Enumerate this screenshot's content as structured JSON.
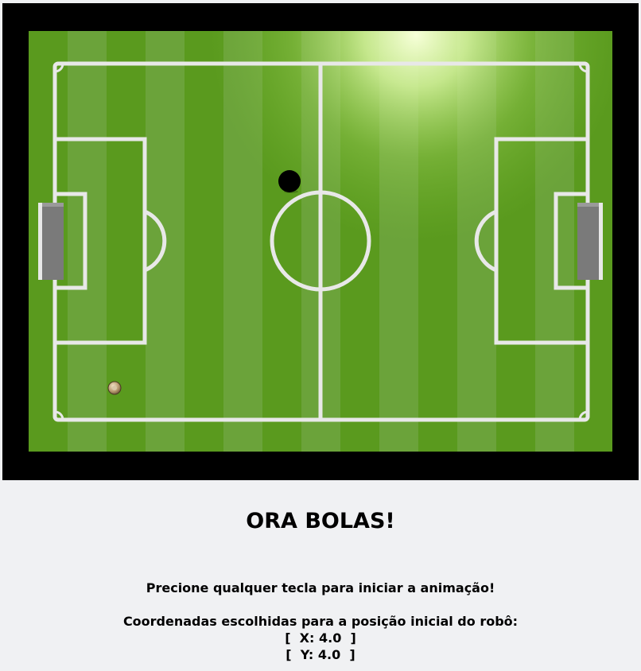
{
  "game": {
    "title": "ORA BOLAS!",
    "instruction": "Precione qualquer tecla para iniciar a animação!",
    "coords_heading": "Coordenadas escolhidas para a posição inicial do robô:",
    "coord_x": "[  X: 4.0  ]",
    "coord_y": "[  Y: 4.0  ]"
  },
  "colors": {
    "frame": "#000000",
    "grass_dark": "#5a9a1e",
    "grass_light": "#6ba33a",
    "lines": "#e8e8e8",
    "goal": "#7a7a7a",
    "page_bg": "#f0f1f3"
  },
  "icons": {
    "ball": "black-ball-icon",
    "robot": "robot-icon"
  }
}
